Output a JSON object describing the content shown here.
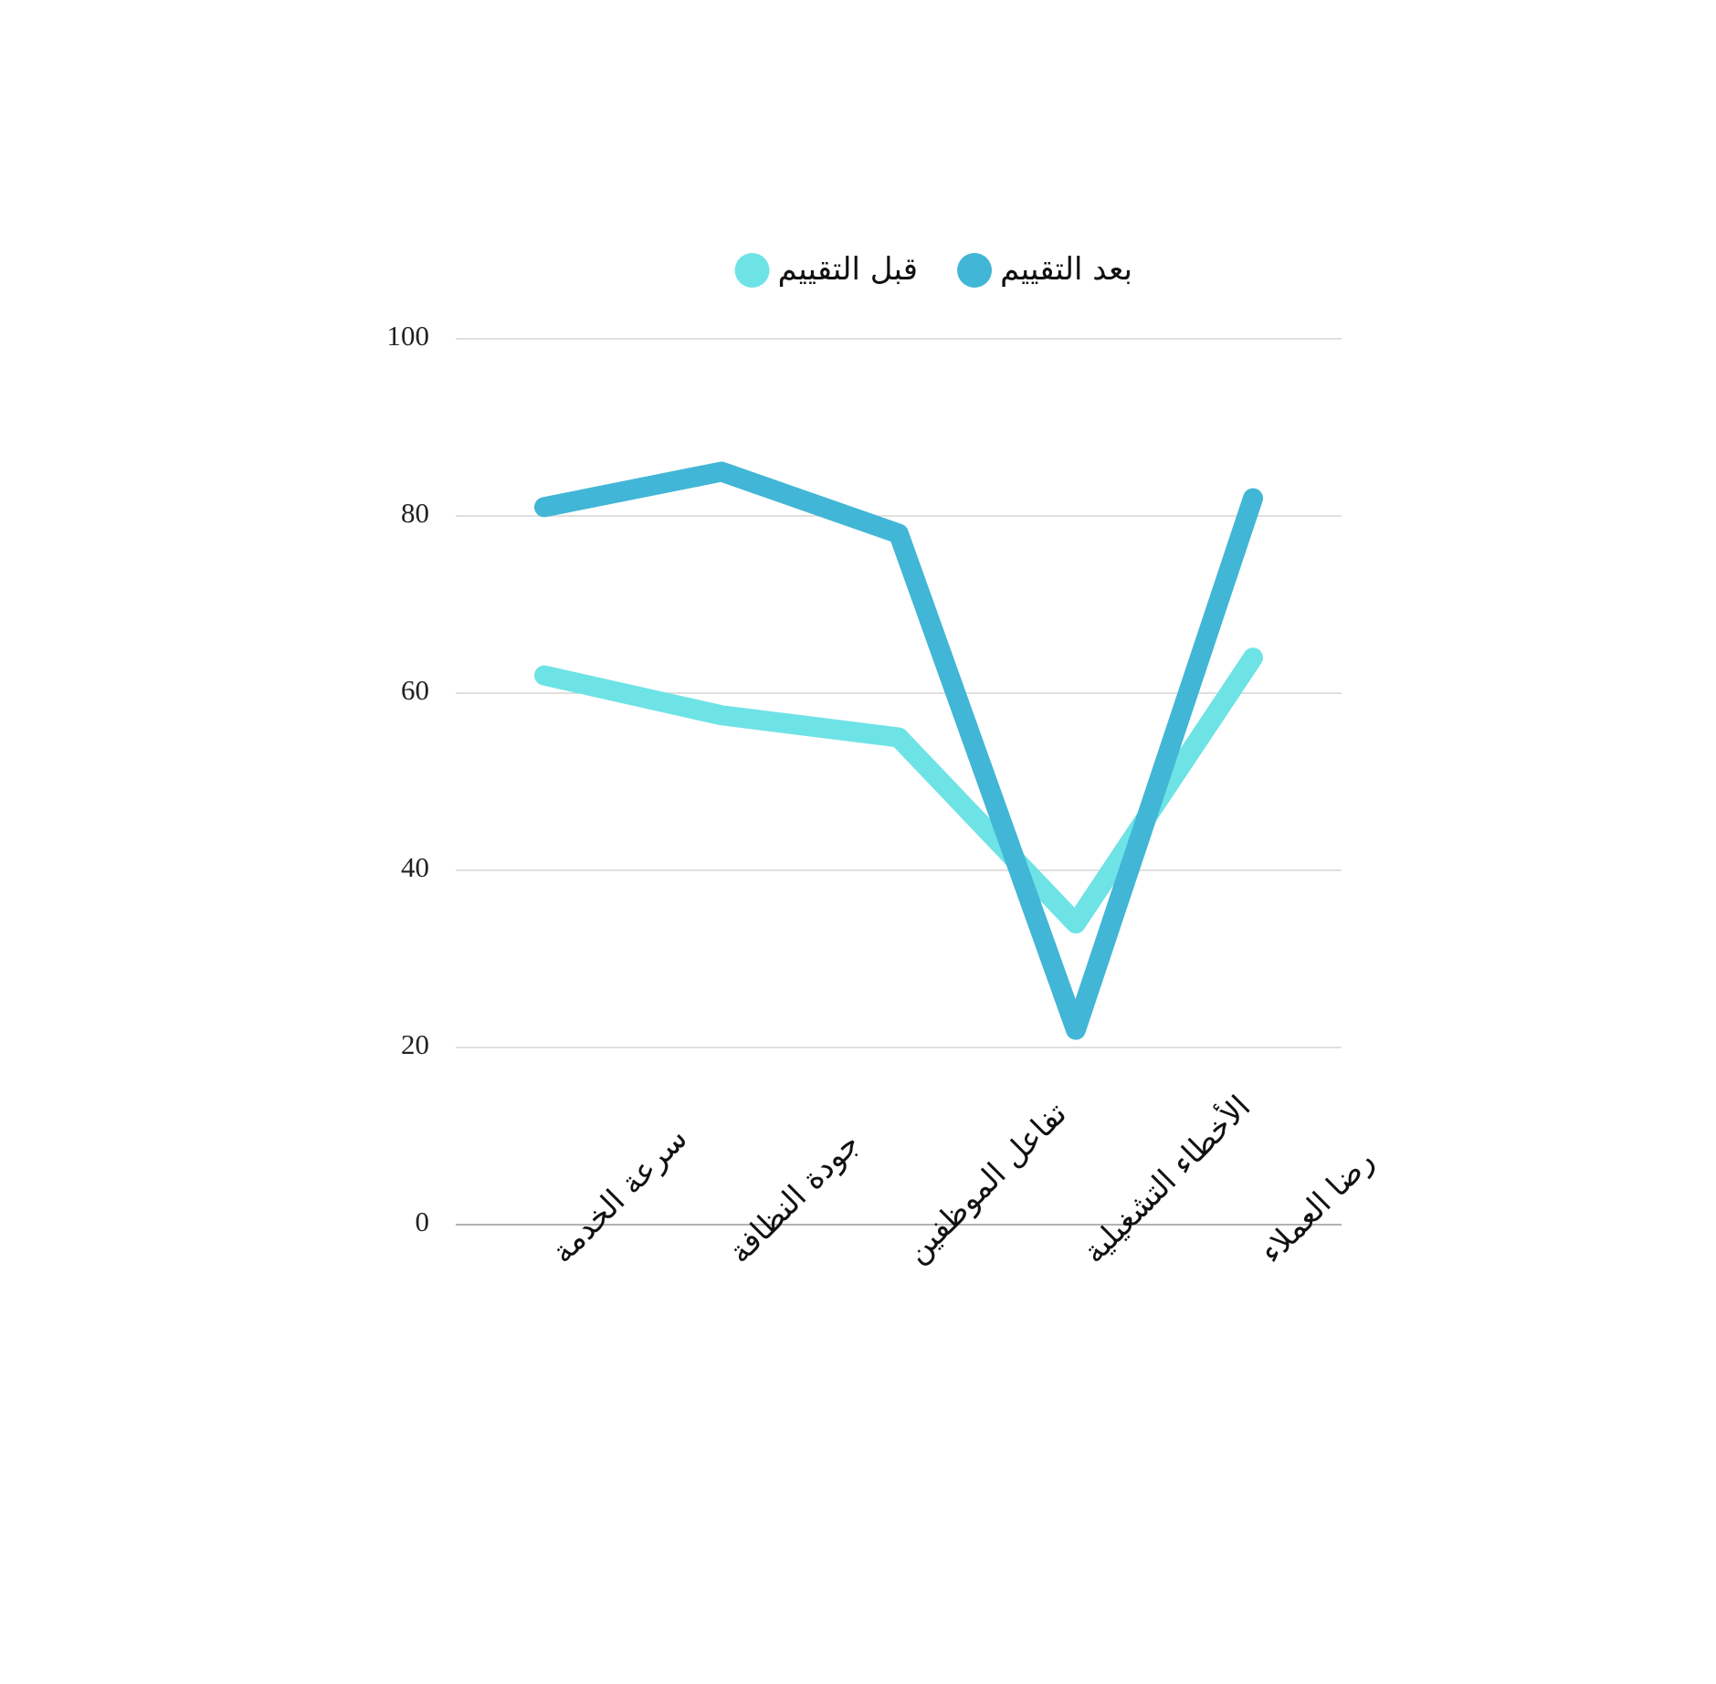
{
  "chart_data": {
    "type": "line",
    "categories": [
      "سرعة الخدمة",
      "جودة النظافة",
      "تفاعل الموظفين",
      "الأخطاء التشغيلية",
      "رضا العملاء"
    ],
    "series": [
      {
        "name": "بعد التقييم",
        "color": "#42b6d6",
        "values": [
          81,
          85,
          78,
          22,
          82
        ]
      },
      {
        "name": "قبل التقييم",
        "color": "#6ee3e6",
        "values": [
          62,
          57.5,
          55,
          34,
          64
        ]
      }
    ],
    "ylim": [
      0,
      100
    ],
    "yticks": [
      0,
      20,
      40,
      60,
      80,
      100
    ],
    "grid": true,
    "legend": "top"
  }
}
